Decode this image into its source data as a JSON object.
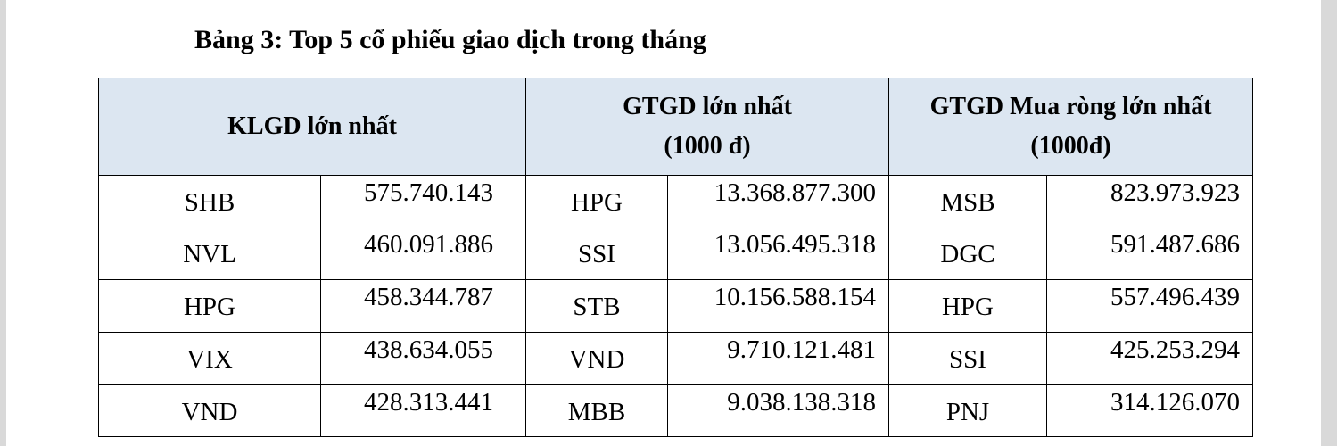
{
  "title": "Bảng 3: Top 5 cổ phiếu giao dịch trong tháng",
  "table": {
    "headers": [
      [
        "KLGD lớn nhất"
      ],
      [
        "GTGD lớn nhất",
        "(1000 đ)"
      ],
      [
        "GTGD Mua ròng lớn nhất",
        "(1000đ)"
      ]
    ],
    "rows": [
      [
        "SHB",
        "575.740.143",
        "HPG",
        "13.368.877.300",
        "MSB",
        "823.973.923"
      ],
      [
        "NVL",
        "460.091.886",
        "SSI",
        "13.056.495.318",
        "DGC",
        "591.487.686"
      ],
      [
        "HPG",
        "458.344.787",
        "STB",
        "10.156.588.154",
        "HPG",
        "557.496.439"
      ],
      [
        "VIX",
        "438.634.055",
        "VND",
        "9.710.121.481",
        "SSI",
        "425.253.294"
      ],
      [
        "VND",
        "428.313.441",
        "MBB",
        "9.038.138.318",
        "PNJ",
        "314.126.070"
      ]
    ]
  }
}
